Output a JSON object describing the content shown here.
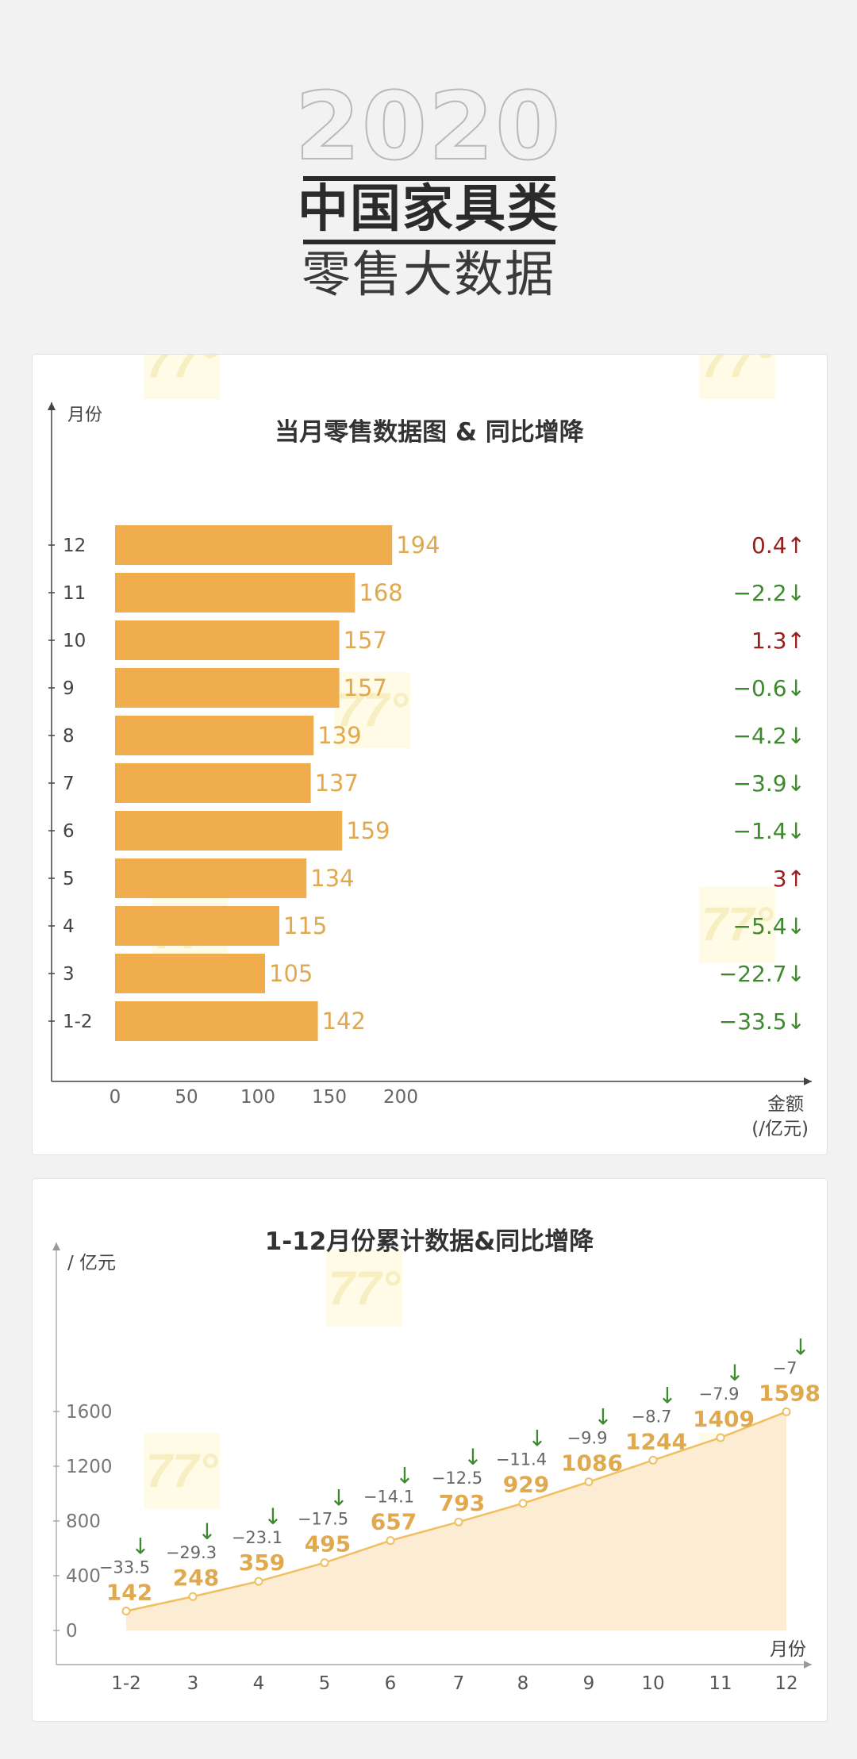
{
  "header": {
    "year": "2020",
    "title": "中国家具类",
    "subtitle": "零售大数据"
  },
  "watermark_text": "77°",
  "colors": {
    "bar": "#f0ad4e",
    "value_text": "#e0a94e",
    "up": "#9b1c1c",
    "down": "#3d8a2e",
    "line": "#f0c060",
    "area": "#fcecd4",
    "axis": "#444444"
  },
  "chart_data": [
    {
      "type": "bar",
      "orientation": "horizontal",
      "title": "当月零售数据图 & 同比增降",
      "ylabel": "月份",
      "xlabel": "金额",
      "xunit": "(/亿元)",
      "xlim": [
        0,
        240
      ],
      "xticks": [
        0,
        50,
        100,
        150,
        200
      ],
      "categories": [
        "12",
        "11",
        "10",
        "9",
        "8",
        "7",
        "6",
        "5",
        "4",
        "3",
        "1-2"
      ],
      "values": [
        194,
        168,
        157,
        157,
        139,
        137,
        159,
        134,
        115,
        105,
        142
      ],
      "yoy": [
        {
          "text": "0.4",
          "dir": "up"
        },
        {
          "text": "−2.2",
          "dir": "down"
        },
        {
          "text": "1.3",
          "dir": "up"
        },
        {
          "text": "−0.6",
          "dir": "down"
        },
        {
          "text": "−4.2",
          "dir": "down"
        },
        {
          "text": "−3.9",
          "dir": "down"
        },
        {
          "text": "−1.4",
          "dir": "down"
        },
        {
          "text": "3",
          "dir": "up"
        },
        {
          "text": "−5.4",
          "dir": "down"
        },
        {
          "text": "−22.7",
          "dir": "down"
        },
        {
          "text": "−33.5",
          "dir": "down"
        }
      ]
    },
    {
      "type": "area",
      "title": "1-12月份累计数据&同比增降",
      "ylabel": "/ 亿元",
      "xlabel": "月份",
      "ylim": [
        0,
        1750
      ],
      "yticks": [
        0,
        400,
        800,
        1200,
        1600
      ],
      "categories": [
        "1-2",
        "3",
        "4",
        "5",
        "6",
        "7",
        "8",
        "9",
        "10",
        "11",
        "12"
      ],
      "values": [
        142,
        248,
        359,
        495,
        657,
        793,
        929,
        1086,
        1244,
        1409,
        1598
      ],
      "yoy": [
        "−33.5",
        "−29.3",
        "−23.1",
        "−17.5",
        "−14.1",
        "−12.5",
        "−11.4",
        "−9.9",
        "−8.7",
        "−7.9",
        "−7"
      ]
    }
  ]
}
